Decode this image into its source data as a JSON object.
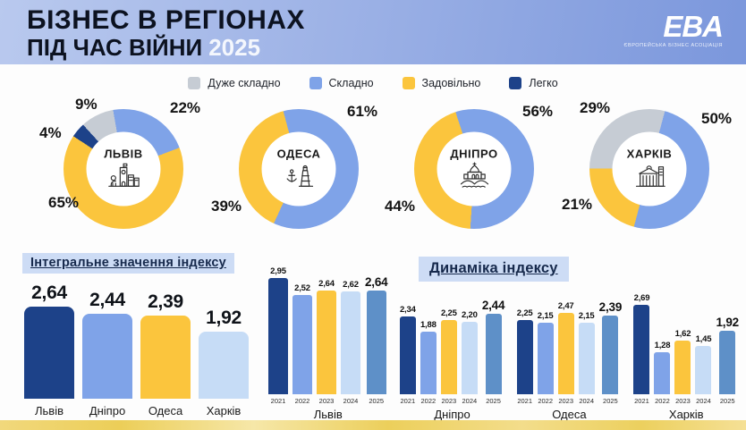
{
  "header": {
    "title_line1": "БІЗНЕС В РЕГІОНАХ",
    "title_line2": "ПІД ЧАС ВІЙНИ",
    "year": "2025",
    "logo": {
      "text": "EBA",
      "subtext": "Європейська Бізнес Асоціація"
    }
  },
  "legend": [
    {
      "label": "Дуже складно",
      "color": "#c6ccd4"
    },
    {
      "label": "Складно",
      "color": "#7fa3e8"
    },
    {
      "label": "Задовільно",
      "color": "#fbc53d"
    },
    {
      "label": "Легко",
      "color": "#1d4289"
    }
  ],
  "sections": {
    "integral_title": "Інтегральне значення індексу",
    "dynamics_title": "Динаміка індексу"
  },
  "colors": {
    "year_2021": "#1d4289",
    "year_2022": "#7fa3e8",
    "year_2023": "#fbc53d",
    "year_2024": "#c6dcf6",
    "year_2025": "#5e90c8"
  },
  "chart_data": [
    {
      "type": "pie",
      "id": "lviv",
      "title": "ЛЬВІВ",
      "icon": "lviv-townhall-lion-icon",
      "segments": [
        {
          "label": "Складно",
          "value": 22
        },
        {
          "label": "Задовільно",
          "value": 65
        },
        {
          "label": "Легко",
          "value": 4
        },
        {
          "label": "Дуже складно",
          "value": 9
        }
      ]
    },
    {
      "type": "pie",
      "id": "odesa",
      "title": "ОДЕСА",
      "icon": "odesa-lighthouse-anchor-icon",
      "segments": [
        {
          "label": "Складно",
          "value": 61
        },
        {
          "label": "Задовільно",
          "value": 39
        }
      ]
    },
    {
      "type": "pie",
      "id": "dnipro",
      "title": "ДНІПРО",
      "icon": "dnipro-cathedral-bridge-icon",
      "segments": [
        {
          "label": "Складно",
          "value": 56
        },
        {
          "label": "Задовільно",
          "value": 44
        }
      ]
    },
    {
      "type": "pie",
      "id": "kharkiv",
      "title": "ХАРКІВ",
      "icon": "kharkiv-buildings-icon",
      "segments": [
        {
          "label": "Складно",
          "value": 50
        },
        {
          "label": "Задовільно",
          "value": 21
        },
        {
          "label": "Дуже складно",
          "value": 29
        }
      ]
    },
    {
      "type": "bar",
      "id": "integral",
      "title": "Інтегральне значення індексу",
      "categories": [
        "Львів",
        "Дніпро",
        "Одеса",
        "Харків"
      ],
      "values": [
        2.64,
        2.44,
        2.39,
        1.92
      ],
      "value_labels": [
        "2,64",
        "2,44",
        "2,39",
        "1,92"
      ],
      "bar_colors": [
        "#1d4289",
        "#7fa3e8",
        "#fbc53d",
        "#c6dcf6"
      ],
      "ylim": [
        0,
        3
      ]
    },
    {
      "type": "bar",
      "id": "dyn-lviv",
      "title": "Львів",
      "categories": [
        "2021",
        "2022",
        "2023",
        "2024",
        "2025"
      ],
      "values": [
        2.95,
        2.52,
        2.64,
        2.62,
        2.64
      ],
      "value_labels": [
        "2,95",
        "2,52",
        "2,64",
        "2,62",
        "2,64"
      ],
      "bar_colors": [
        "#1d4289",
        "#7fa3e8",
        "#fbc53d",
        "#c6dcf6",
        "#5e90c8"
      ],
      "ylim": [
        0,
        3
      ]
    },
    {
      "type": "bar",
      "id": "dyn-dnipro",
      "title": "Дніпро",
      "categories": [
        "2021",
        "2022",
        "2023",
        "2024",
        "2025"
      ],
      "values": [
        2.34,
        1.88,
        2.25,
        2.2,
        2.44
      ],
      "value_labels": [
        "2,34",
        "1,88",
        "2,25",
        "2,20",
        "2,44"
      ],
      "bar_colors": [
        "#1d4289",
        "#7fa3e8",
        "#fbc53d",
        "#c6dcf6",
        "#5e90c8"
      ],
      "ylim": [
        0,
        3
      ]
    },
    {
      "type": "bar",
      "id": "dyn-odesa",
      "title": "Одеса",
      "categories": [
        "2021",
        "2022",
        "2023",
        "2024",
        "2025"
      ],
      "values": [
        2.25,
        2.15,
        2.47,
        2.15,
        2.39
      ],
      "value_labels": [
        "2,25",
        "2,15",
        "2,47",
        "2,15",
        "2,39"
      ],
      "bar_colors": [
        "#1d4289",
        "#7fa3e8",
        "#fbc53d",
        "#c6dcf6",
        "#5e90c8"
      ],
      "ylim": [
        0,
        3
      ]
    },
    {
      "type": "bar",
      "id": "dyn-kharkiv",
      "title": "Харків",
      "categories": [
        "2021",
        "2022",
        "2023",
        "2024",
        "2025"
      ],
      "values": [
        2.69,
        1.28,
        1.62,
        1.45,
        1.92
      ],
      "value_labels": [
        "2,69",
        "1,28",
        "1,62",
        "1,45",
        "1,92"
      ],
      "bar_colors": [
        "#1d4289",
        "#7fa3e8",
        "#fbc53d",
        "#c6dcf6",
        "#5e90c8"
      ],
      "ylim": [
        0,
        3
      ]
    }
  ]
}
